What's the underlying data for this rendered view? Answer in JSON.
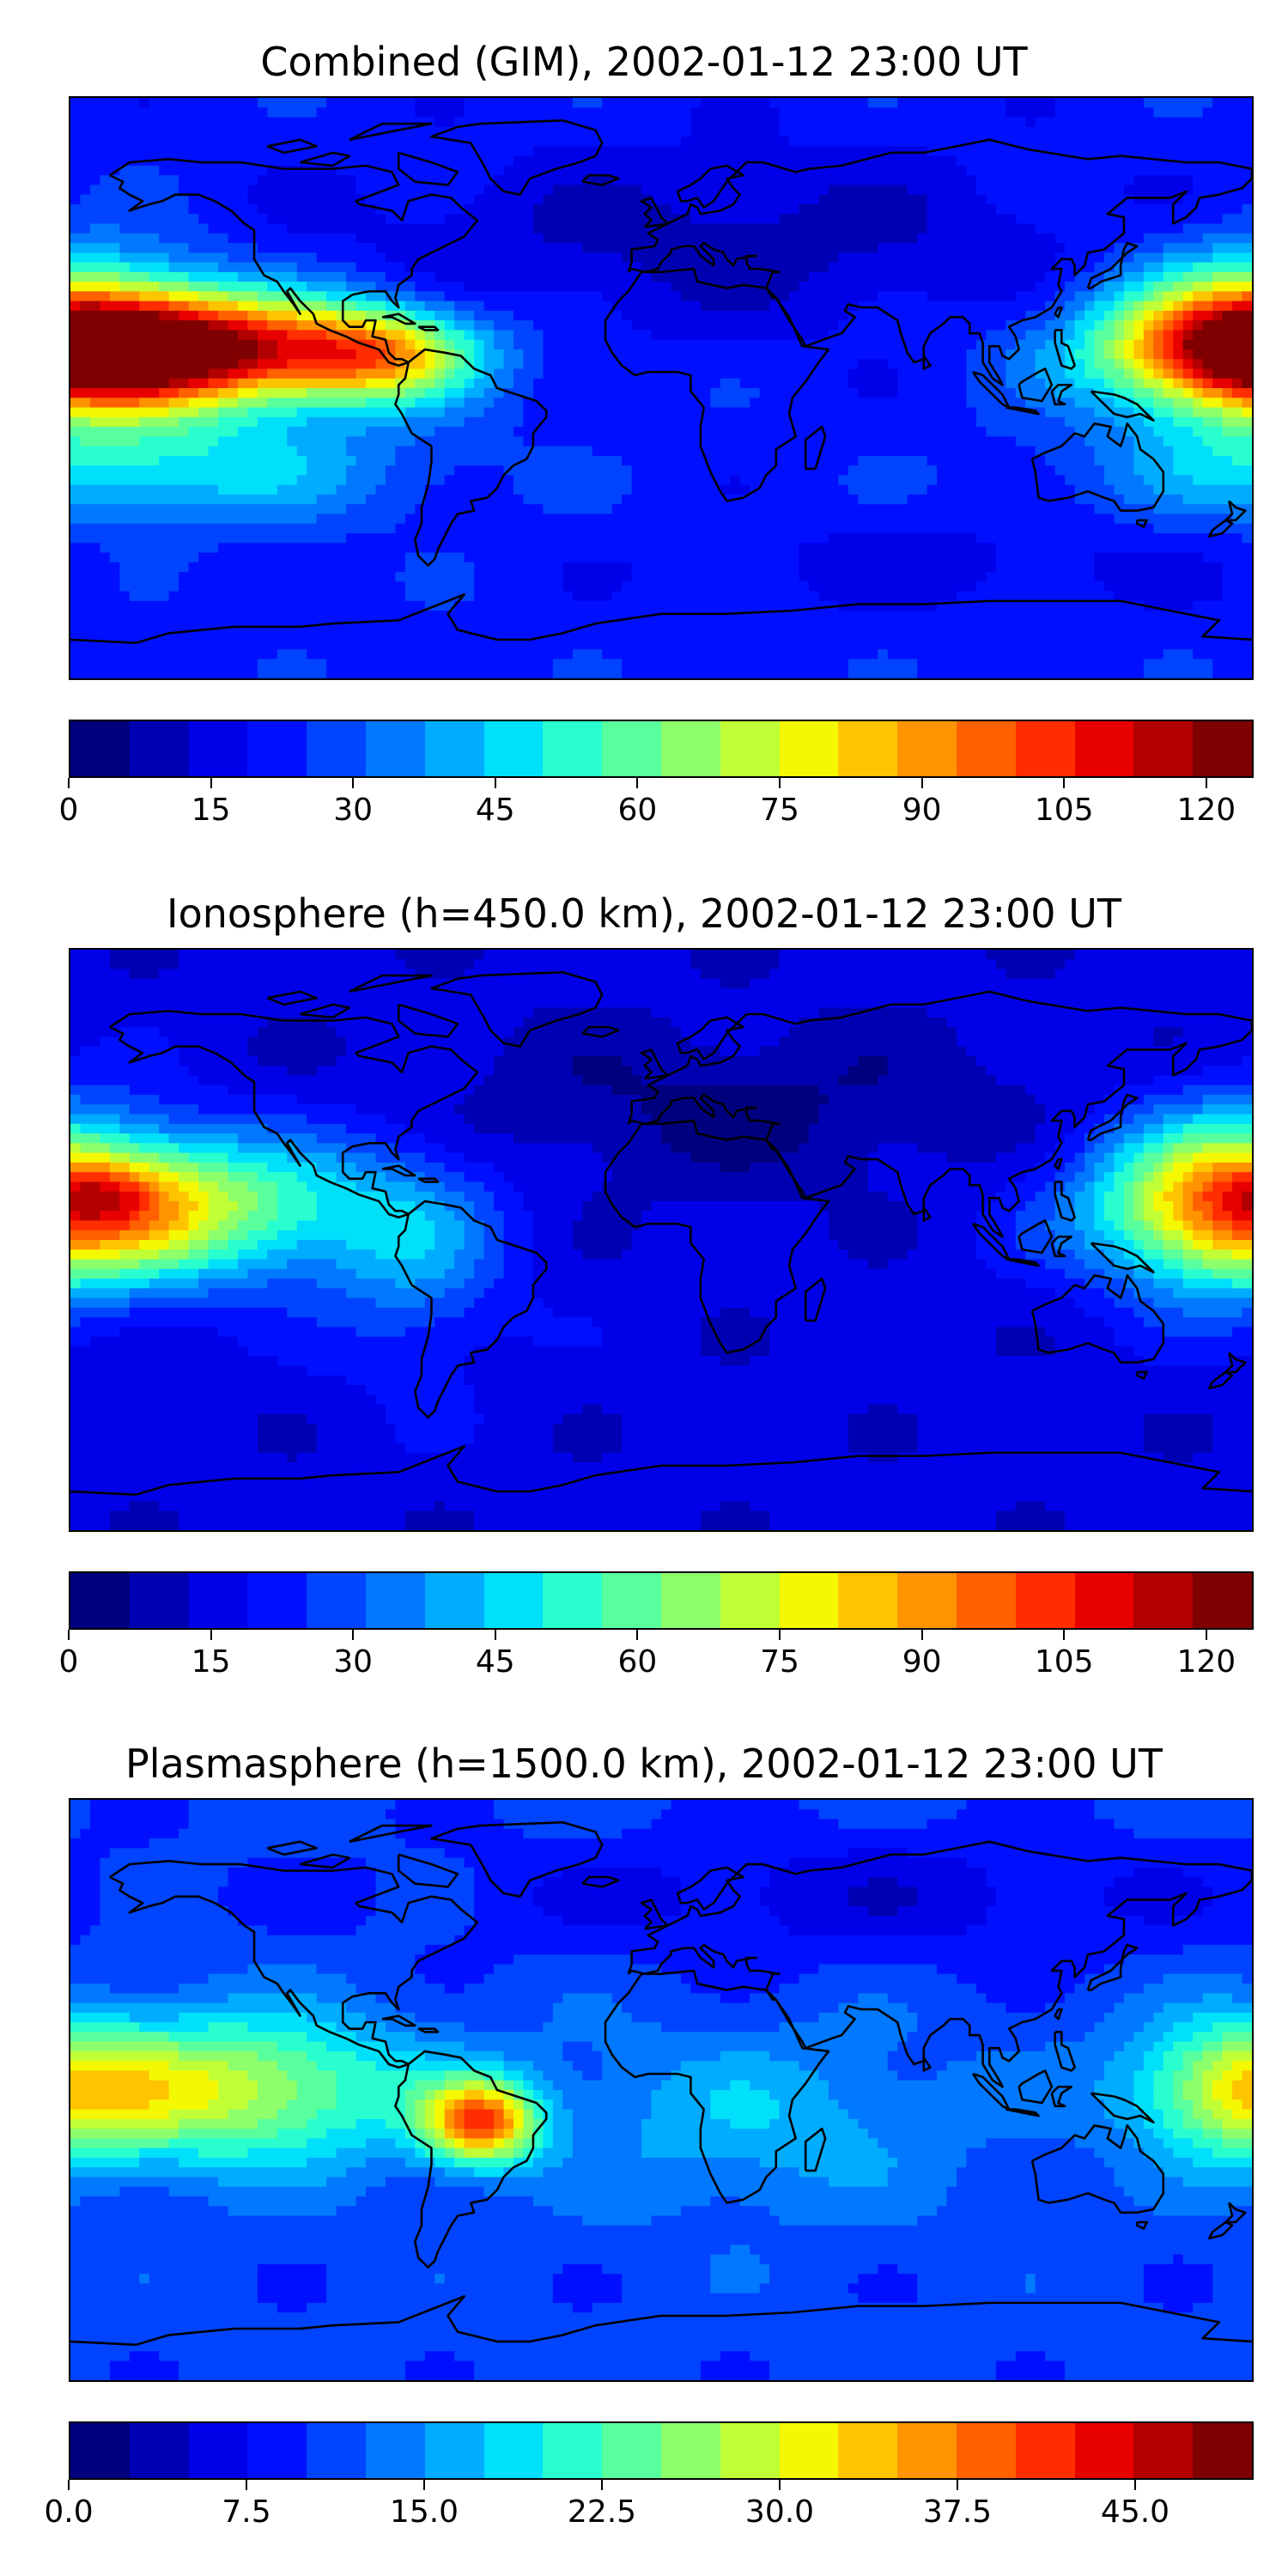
{
  "colormap": {
    "name": "jet",
    "colors": [
      "#00007f",
      "#0000b3",
      "#0000e8",
      "#0010ff",
      "#0044ff",
      "#0078ff",
      "#00acff",
      "#00e0fb",
      "#29ffce",
      "#5aff9d",
      "#8dff6a",
      "#c0ff36",
      "#f4f802",
      "#ffc400",
      "#ff9400",
      "#ff6000",
      "#ff2d00",
      "#e80000",
      "#b30000",
      "#7f0000"
    ]
  },
  "panels": [
    {
      "id": "combined",
      "title": "Combined (GIM), 2002-01-12 23:00 UT",
      "colorbar": {
        "min": 0,
        "max": 125,
        "levels": 20,
        "ticks": [
          "0",
          "15",
          "30",
          "45",
          "60",
          "75",
          "90",
          "105",
          "120"
        ],
        "tick_values": [
          0,
          15,
          30,
          45,
          60,
          75,
          90,
          105,
          120
        ]
      },
      "field": {
        "base": 0.18,
        "blobs": [
          {
            "lon": -150,
            "lat": 12,
            "amp": 0.8,
            "slon": 45,
            "slat": 12
          },
          {
            "lon": -85,
            "lat": 10,
            "amp": 0.35,
            "slon": 20,
            "slat": 10
          },
          {
            "lon": 180,
            "lat": 15,
            "amp": 0.45,
            "slon": 28,
            "slat": 18
          },
          {
            "lon": -150,
            "lat": -25,
            "amp": 0.2,
            "slon": 50,
            "slat": 12
          },
          {
            "lon": 20,
            "lat": 45,
            "amp": -0.1,
            "slon": 80,
            "slat": 20
          },
          {
            "lon": 90,
            "lat": -55,
            "amp": -0.05,
            "slon": 60,
            "slat": 10
          }
        ]
      }
    },
    {
      "id": "ionosphere",
      "title": "Ionosphere  (h=450.0 km), 2002-01-12 23:00 UT",
      "colorbar": {
        "min": 0,
        "max": 125,
        "levels": 20,
        "ticks": [
          "0",
          "15",
          "30",
          "45",
          "60",
          "75",
          "90",
          "105",
          "120"
        ],
        "tick_values": [
          0,
          15,
          30,
          45,
          60,
          75,
          90,
          105,
          120
        ]
      },
      "field": {
        "base": 0.12,
        "blobs": [
          {
            "lon": -155,
            "lat": 10,
            "amp": 0.48,
            "slon": 45,
            "slat": 16
          },
          {
            "lon": -170,
            "lat": 14,
            "amp": 0.12,
            "slon": 12,
            "slat": 6
          },
          {
            "lon": 170,
            "lat": 12,
            "amp": 0.35,
            "slon": 25,
            "slat": 20
          },
          {
            "lon": -75,
            "lat": -5,
            "amp": 0.15,
            "slon": 20,
            "slat": 25
          },
          {
            "lon": 20,
            "lat": 40,
            "amp": -0.08,
            "slon": 70,
            "slat": 18
          }
        ]
      }
    },
    {
      "id": "plasmasphere",
      "title": "Plasmasphere (h=1500.0 km), 2002-01-12 23:00 UT",
      "colorbar": {
        "min": 0,
        "max": 50,
        "levels": 20,
        "ticks": [
          "0.0",
          "7.5",
          "15.0",
          "22.5",
          "30.0",
          "37.5",
          "45.0"
        ],
        "tick_values": [
          0,
          7.5,
          15,
          22.5,
          30,
          37.5,
          45
        ]
      },
      "field": {
        "base": 0.22,
        "blobs": [
          {
            "lon": -55,
            "lat": -10,
            "amp": 0.55,
            "slon": 12,
            "slat": 9
          },
          {
            "lon": -140,
            "lat": 0,
            "amp": 0.38,
            "slon": 45,
            "slat": 16
          },
          {
            "lon": 175,
            "lat": 0,
            "amp": 0.22,
            "slon": 18,
            "slat": 14
          },
          {
            "lon": 30,
            "lat": -10,
            "amp": 0.12,
            "slon": 40,
            "slat": 20
          },
          {
            "lon": 60,
            "lat": 60,
            "amp": -0.1,
            "slon": 90,
            "slat": 15
          }
        ]
      }
    }
  ]
}
